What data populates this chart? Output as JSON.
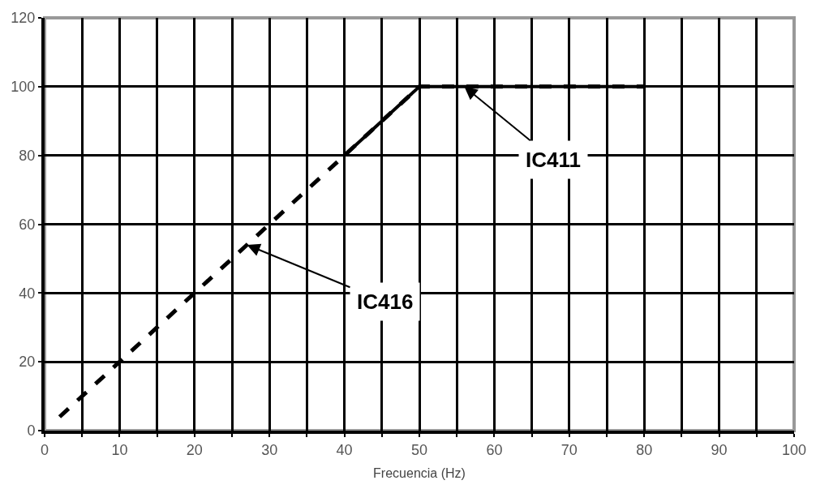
{
  "chart_data": {
    "type": "line",
    "xlabel": "Frecuencia (Hz)",
    "series": [
      {
        "color": "#000000",
        "x": [
          2,
          50,
          80
        ],
        "values": [
          4,
          100,
          100
        ],
        "line_style": "dashed"
      },
      {
        "color": "#000000",
        "x": [
          40,
          50,
          80
        ],
        "values": [
          80,
          100,
          100
        ],
        "line_style": "solid"
      }
    ],
    "annotations": [
      {
        "text": "IC411",
        "x": 56,
        "y": 100
      },
      {
        "text": "IC416",
        "x": 27,
        "y": 54
      }
    ],
    "xlim": [
      0,
      100
    ],
    "ylim": [
      0,
      120
    ],
    "xticks": [
      0,
      {
        "value": 5,
        "label": null
      },
      10,
      {
        "value": 15,
        "label": null
      },
      20,
      {
        "value": 25,
        "label": null
      },
      30,
      {
        "value": 35,
        "label": null
      },
      40,
      {
        "value": 45,
        "label": null
      },
      50,
      {
        "value": 55,
        "label": null
      },
      60,
      {
        "value": 65,
        "label": null
      },
      70,
      {
        "value": 75,
        "label": null
      },
      80,
      {
        "value": 85,
        "label": null
      },
      90,
      {
        "value": 95,
        "label": null
      },
      100
    ],
    "yticks": [
      0,
      20,
      40,
      60,
      80,
      100,
      120
    ],
    "grid": true,
    "legend": false,
    "marker": "none"
  }
}
